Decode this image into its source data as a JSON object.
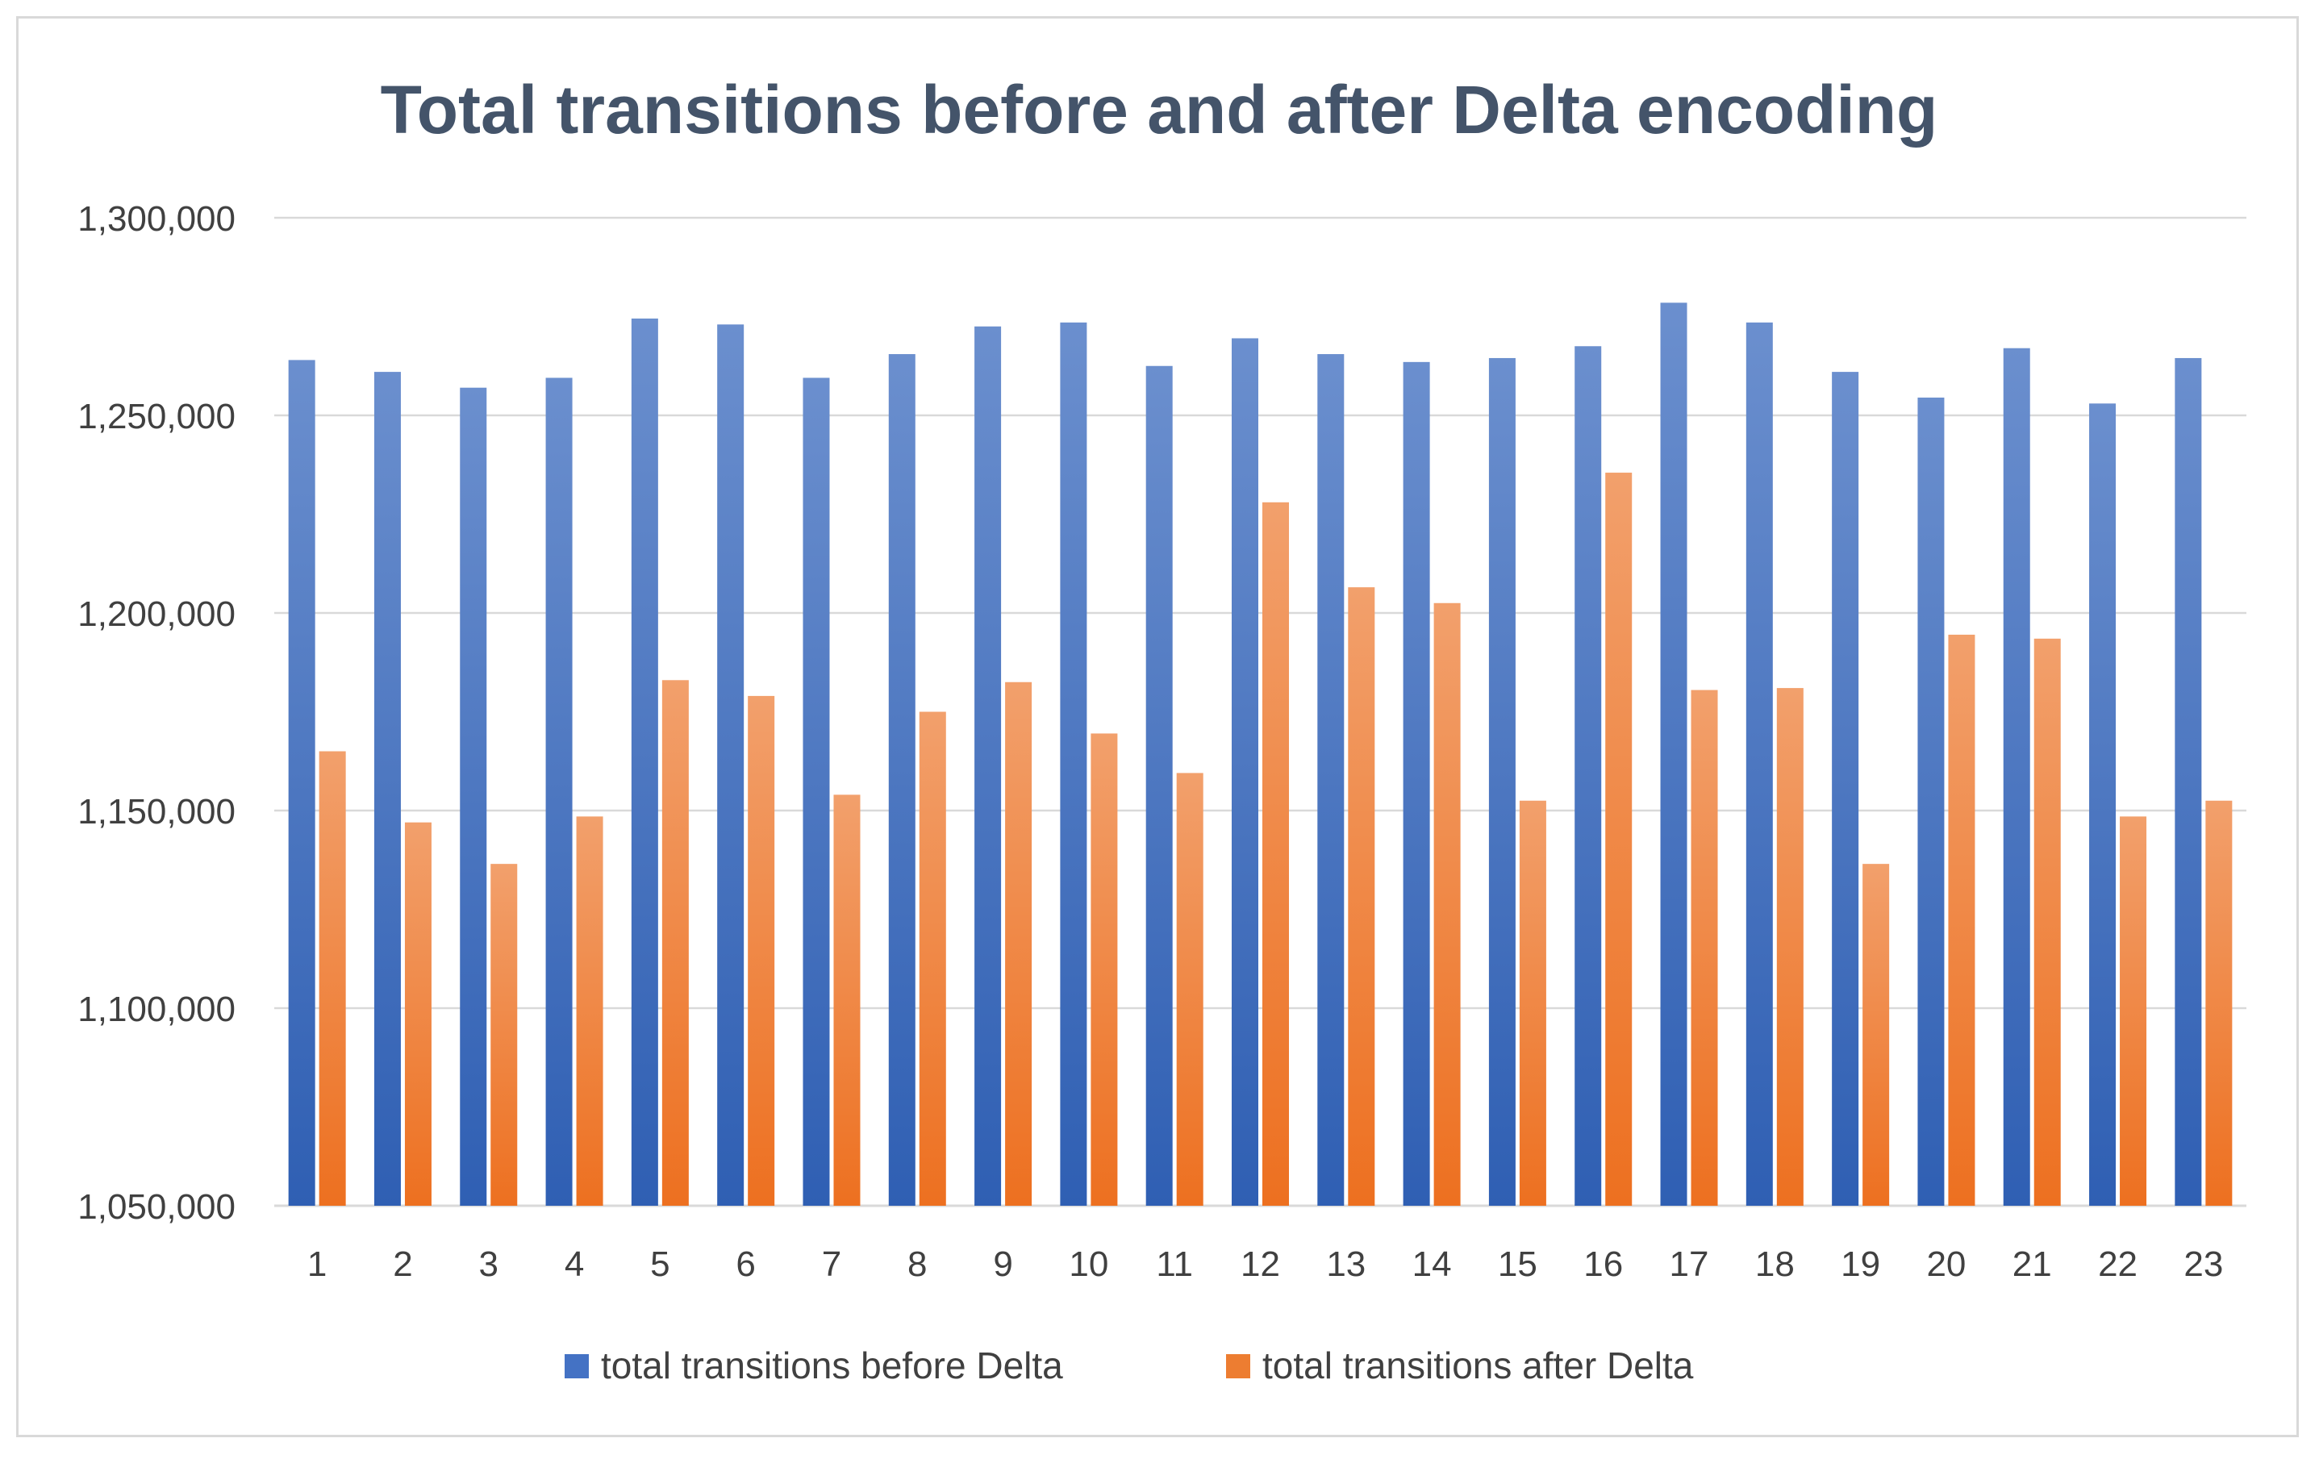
{
  "chart_data": {
    "type": "bar",
    "title": "Total transitions before and after Delta encoding",
    "xlabel": "",
    "ylabel": "",
    "ylim": [
      1050000,
      1300000
    ],
    "yticks": [
      1050000,
      1100000,
      1150000,
      1200000,
      1250000,
      1300000
    ],
    "ytick_labels": [
      "1,050,000",
      "1,100,000",
      "1,150,000",
      "1,200,000",
      "1,250,000",
      "1,300,000"
    ],
    "categories": [
      "1",
      "2",
      "3",
      "4",
      "5",
      "6",
      "7",
      "8",
      "9",
      "10",
      "11",
      "12",
      "13",
      "14",
      "15",
      "16",
      "17",
      "18",
      "19",
      "20",
      "21",
      "22",
      "23"
    ],
    "series": [
      {
        "name": "total transitions before Delta",
        "color": "#4472c4",
        "values": [
          1264000,
          1261000,
          1257000,
          1259500,
          1274500,
          1273000,
          1259500,
          1265500,
          1272500,
          1273500,
          1262500,
          1269500,
          1265500,
          1263500,
          1264500,
          1267500,
          1278500,
          1273500,
          1261000,
          1254500,
          1267000,
          1253000,
          1264500
        ]
      },
      {
        "name": "total transitions after Delta",
        "color": "#ed7d31",
        "values": [
          1165000,
          1147000,
          1136500,
          1148500,
          1183000,
          1179000,
          1154000,
          1175000,
          1182500,
          1169500,
          1159500,
          1228000,
          1206500,
          1202500,
          1152500,
          1235500,
          1180500,
          1181000,
          1136500,
          1194500,
          1193500,
          1148500,
          1152500
        ]
      }
    ],
    "grid": true,
    "legend_position": "bottom"
  }
}
